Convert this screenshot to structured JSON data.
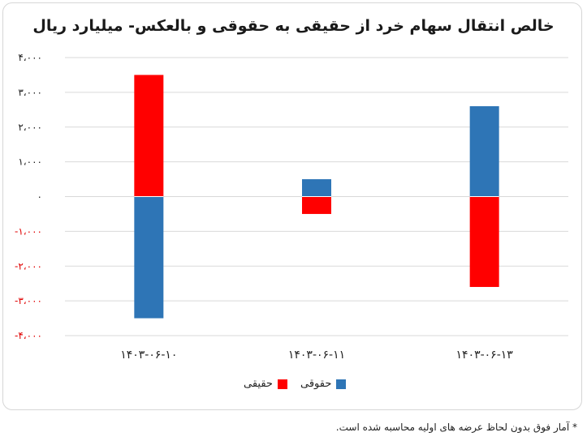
{
  "chart_data": {
    "type": "bar",
    "stacked": true,
    "title": "خالص انتقال سهام خرد از حقیقی به حقوقی و بالعکس- میلیارد ریال",
    "categories": [
      "۱۴۰۳-۰۶-۱۰",
      "۱۴۰۳-۰۶-۱۱",
      "۱۴۰۳-۰۶-۱۳"
    ],
    "series": [
      {
        "name": "حقیقی",
        "color": "#ff0000",
        "values": [
          3500,
          -500,
          -2600
        ]
      },
      {
        "name": "حقوقی",
        "color": "#2e75b6",
        "values": [
          -3500,
          500,
          2600
        ]
      }
    ],
    "ylim": [
      -4000,
      4000
    ],
    "yticks": [
      {
        "value": 4000,
        "label": "۴،۰۰۰"
      },
      {
        "value": 3000,
        "label": "۳،۰۰۰"
      },
      {
        "value": 2000,
        "label": "۲،۰۰۰"
      },
      {
        "value": 1000,
        "label": "۱،۰۰۰"
      },
      {
        "value": 0,
        "label": "۰"
      },
      {
        "value": -1000,
        "label": "-۱،۰۰۰"
      },
      {
        "value": -2000,
        "label": "-۲،۰۰۰"
      },
      {
        "value": -3000,
        "label": "-۳،۰۰۰"
      },
      {
        "value": -4000,
        "label": "-۴،۰۰۰"
      }
    ],
    "negative_tick_color": "#e00000",
    "positive_tick_color": "#1a1a1a",
    "grid": true,
    "legend_position": "bottom"
  },
  "legend": {
    "items": [
      "حقیقی",
      "حقوقی"
    ]
  },
  "footnote": "* آمار فوق بدون لحاظ عرضه های اولیه محاسبه شده است."
}
